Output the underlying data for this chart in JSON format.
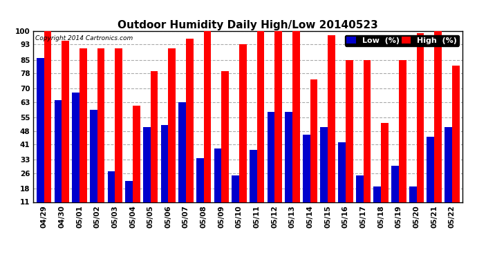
{
  "title": "Outdoor Humidity Daily High/Low 20140523",
  "copyright": "Copyright 2014 Cartronics.com",
  "dates": [
    "04/29",
    "04/30",
    "05/01",
    "05/02",
    "05/03",
    "05/04",
    "05/05",
    "05/06",
    "05/07",
    "05/08",
    "05/09",
    "05/10",
    "05/11",
    "05/12",
    "05/13",
    "05/14",
    "05/15",
    "05/16",
    "05/17",
    "05/18",
    "05/19",
    "05/20",
    "05/21",
    "05/22"
  ],
  "high": [
    100,
    95,
    91,
    91,
    91,
    61,
    79,
    91,
    96,
    100,
    79,
    93,
    100,
    100,
    100,
    75,
    98,
    85,
    85,
    52,
    85,
    99,
    100,
    82
  ],
  "low": [
    86,
    64,
    68,
    59,
    27,
    22,
    50,
    51,
    63,
    34,
    39,
    25,
    38,
    58,
    58,
    46,
    50,
    42,
    25,
    19,
    30,
    19,
    45,
    50
  ],
  "high_color": "#ff0000",
  "low_color": "#0000cc",
  "bg_color": "#ffffff",
  "grid_color": "#aaaaaa",
  "yticks": [
    11,
    18,
    26,
    33,
    41,
    48,
    55,
    63,
    70,
    78,
    85,
    93,
    100
  ],
  "ymin": 11,
  "ymax": 100,
  "bar_width": 0.42,
  "title_fontsize": 11,
  "legend_fontsize": 8,
  "tick_fontsize": 7.5,
  "copyright_fontsize": 6.5
}
